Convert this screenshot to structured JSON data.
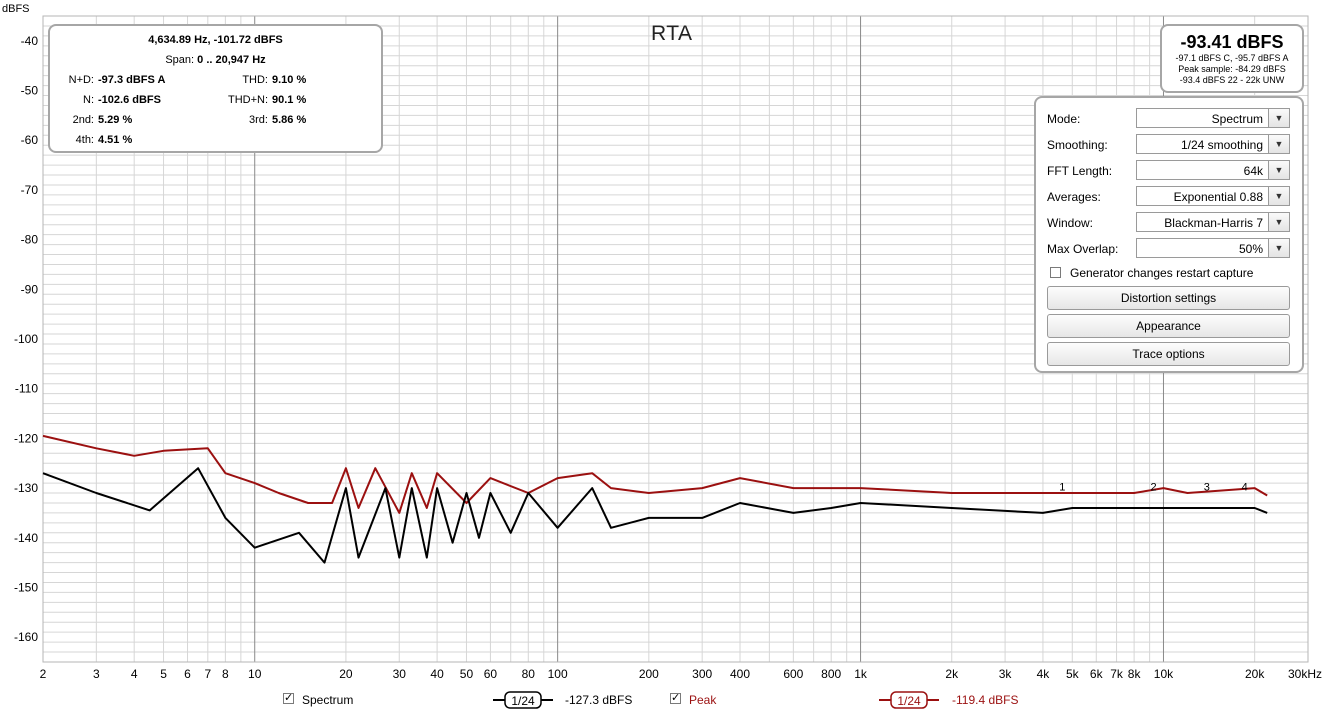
{
  "title": "RTA",
  "axis": {
    "y_unit": "dBFS",
    "x_unit_label": "30kHz",
    "y_ticks": [
      "-40",
      "-50",
      "-60",
      "-70",
      "-80",
      "-90",
      "-100",
      "-110",
      "-120",
      "-130",
      "-140",
      "-150",
      "-160"
    ],
    "x_ticks": [
      "2",
      "3",
      "4",
      "5",
      "6",
      "7",
      "8",
      "10",
      "20",
      "30",
      "40",
      "50",
      "60",
      "80",
      "100",
      "200",
      "300",
      "400",
      "600",
      "800",
      "1k",
      "2k",
      "3k",
      "4k",
      "5k",
      "6k",
      "7k",
      "8k",
      "10k",
      "20k"
    ]
  },
  "cursor_info": {
    "readout": "4,634.89 Hz, -101.72 dBFS",
    "span_label": "Span:",
    "span_value": "0 .. 20,947 Hz",
    "nd_label": "N+D:",
    "nd_value": "-97.3 dBFS A",
    "thd_label": "THD:",
    "thd_value": "9.10 %",
    "n_label": "N:",
    "n_value": "-102.6 dBFS",
    "thdn_label": "THD+N:",
    "thdn_value": "90.1 %",
    "h2_label": "2nd:",
    "h2_value": "5.29 %",
    "h3_label": "3rd:",
    "h3_value": "5.86 %",
    "h4_label": "4th:",
    "h4_value": "4.51 %"
  },
  "level": {
    "main": "-93.41 dBFS",
    "line1": "-97.1 dBFS C, -95.7 dBFS A",
    "line2": "Peak sample: -84.29 dBFS",
    "line3": "-93.4 dBFS 22 - 22k UNW"
  },
  "controls": {
    "mode_label": "Mode:",
    "mode_value": "Spectrum",
    "smoothing_label": "Smoothing:",
    "smoothing_value": "1/24 smoothing",
    "fft_label": "FFT Length:",
    "fft_value": "64k",
    "averages_label": "Averages:",
    "averages_value": "Exponential 0.88",
    "window_label": "Window:",
    "window_value": "Blackman-Harris 7",
    "overlap_label": "Max Overlap:",
    "overlap_value": "50%",
    "generator_label": "Generator changes restart capture",
    "generator_checked": false,
    "distortion_button": "Distortion settings",
    "appearance_button": "Appearance",
    "trace_button": "Trace options"
  },
  "legend": {
    "spectrum_label": "Spectrum",
    "spectrum_smoothing": "1/24",
    "spectrum_level": "-127.3 dBFS",
    "peak_label": "Peak",
    "peak_smoothing": "1/24",
    "peak_level": "-119.4 dBFS"
  },
  "harmonic_markers": [
    "1",
    "2",
    "3",
    "4"
  ],
  "colors": {
    "spectrum": "#000000",
    "peak": "#9b1010",
    "grid": "#d6d6d6",
    "grid_major": "#8a8a8a"
  },
  "chart_data": {
    "type": "line",
    "title": "RTA",
    "xlabel": "",
    "ylabel": "dBFS",
    "x_scale": "log",
    "xlim": [
      2,
      30000
    ],
    "ylim": [
      -165,
      -35
    ],
    "series": [
      {
        "name": "Spectrum",
        "x": [
          2,
          3,
          4.5,
          6.5,
          8,
          10,
          14,
          17,
          20,
          22,
          27,
          30,
          33,
          37,
          40,
          45,
          50,
          55,
          60,
          70,
          80,
          100,
          130,
          150,
          200,
          300,
          400,
          600,
          800,
          1000,
          2000,
          4000,
          5000,
          8000,
          10000,
          12000,
          20000,
          22000
        ],
        "y": [
          -127,
          -131,
          -134.5,
          -126,
          -136,
          -142,
          -139,
          -145,
          -130,
          -144,
          -130,
          -144,
          -130,
          -144,
          -130,
          -141,
          -131,
          -140,
          -131,
          -139,
          -131,
          -138,
          -130,
          -138,
          -136,
          -136,
          -133,
          -135,
          -134,
          -133,
          -134,
          -135,
          -134,
          -134,
          -134,
          -134,
          -134,
          -135
        ]
      },
      {
        "name": "Peak",
        "x": [
          2,
          3,
          4,
          5,
          7,
          8,
          10,
          12,
          15,
          18,
          20,
          22,
          25,
          30,
          33,
          37,
          40,
          50,
          60,
          80,
          100,
          130,
          150,
          200,
          300,
          400,
          600,
          800,
          1000,
          2000,
          4000,
          5000,
          8000,
          10000,
          12000,
          20000,
          22000
        ],
        "y": [
          -119.5,
          -122,
          -123.5,
          -122.5,
          -122,
          -127,
          -129,
          -131,
          -133,
          -133,
          -126,
          -134,
          -126,
          -135,
          -127,
          -134,
          -127,
          -133,
          -128,
          -131,
          -128,
          -127,
          -130,
          -131,
          -130,
          -128,
          -130,
          -130,
          -130,
          -131,
          -131,
          -131,
          -131,
          -130,
          -131,
          -130,
          -131.5
        ]
      }
    ]
  }
}
